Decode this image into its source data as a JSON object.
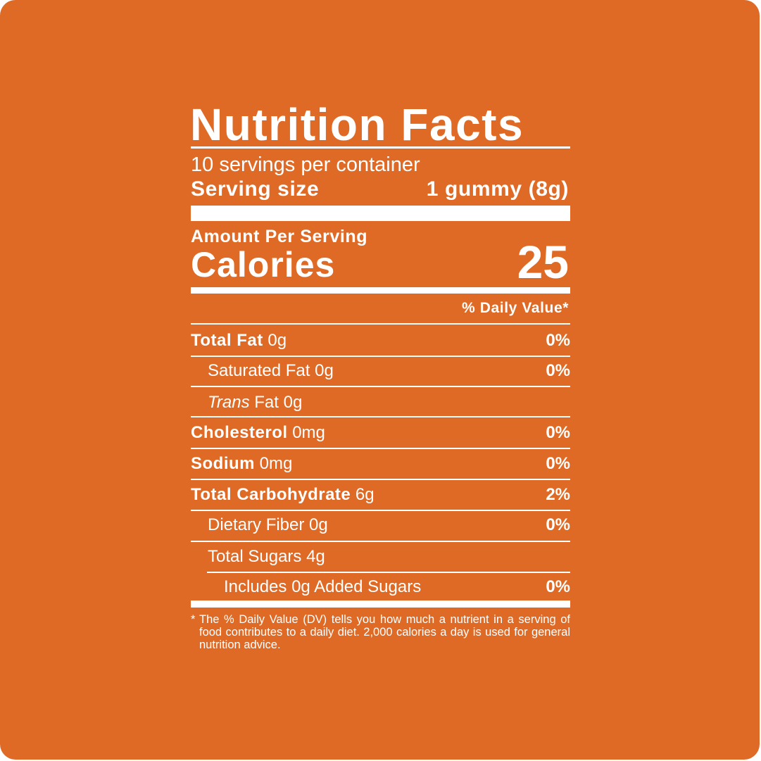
{
  "title": "Nutrition Facts",
  "servings": "10 servings per container",
  "serving_size": {
    "label": "Serving size",
    "value": "1 gummy (8g)"
  },
  "amount_per_serving": "Amount Per Serving",
  "calories": {
    "label": "Calories",
    "value": 25
  },
  "dv_header": "% Daily Value*",
  "rows": [
    {
      "name": "Total Fat",
      "amount": "0g",
      "dv": "0%"
    },
    {
      "name": "Saturated Fat",
      "amount": "0g",
      "dv": "0%"
    },
    {
      "name_italic": "Trans",
      "name": "Fat",
      "amount": "0g"
    },
    {
      "name": "Cholesterol",
      "amount": "0mg",
      "dv": "0%"
    },
    {
      "name": "Sodium",
      "amount": "0mg",
      "dv": "0%"
    },
    {
      "name": "Total Carbohydrate",
      "amount": "6g",
      "dv": "2%"
    },
    {
      "name": "Dietary Fiber",
      "amount": "0g",
      "dv": "0%"
    },
    {
      "name": "Total Sugars",
      "amount": "4g"
    },
    {
      "name": "Includes",
      "amount": "0g Added Sugars",
      "dv": "0%"
    }
  ],
  "footnote": {
    "mark": "*",
    "text": "The % Daily Value (DV) tells you how much a nutrient in a serving of food contributes to a daily diet. 2,000 calories a day is used for general nutrition advice."
  }
}
